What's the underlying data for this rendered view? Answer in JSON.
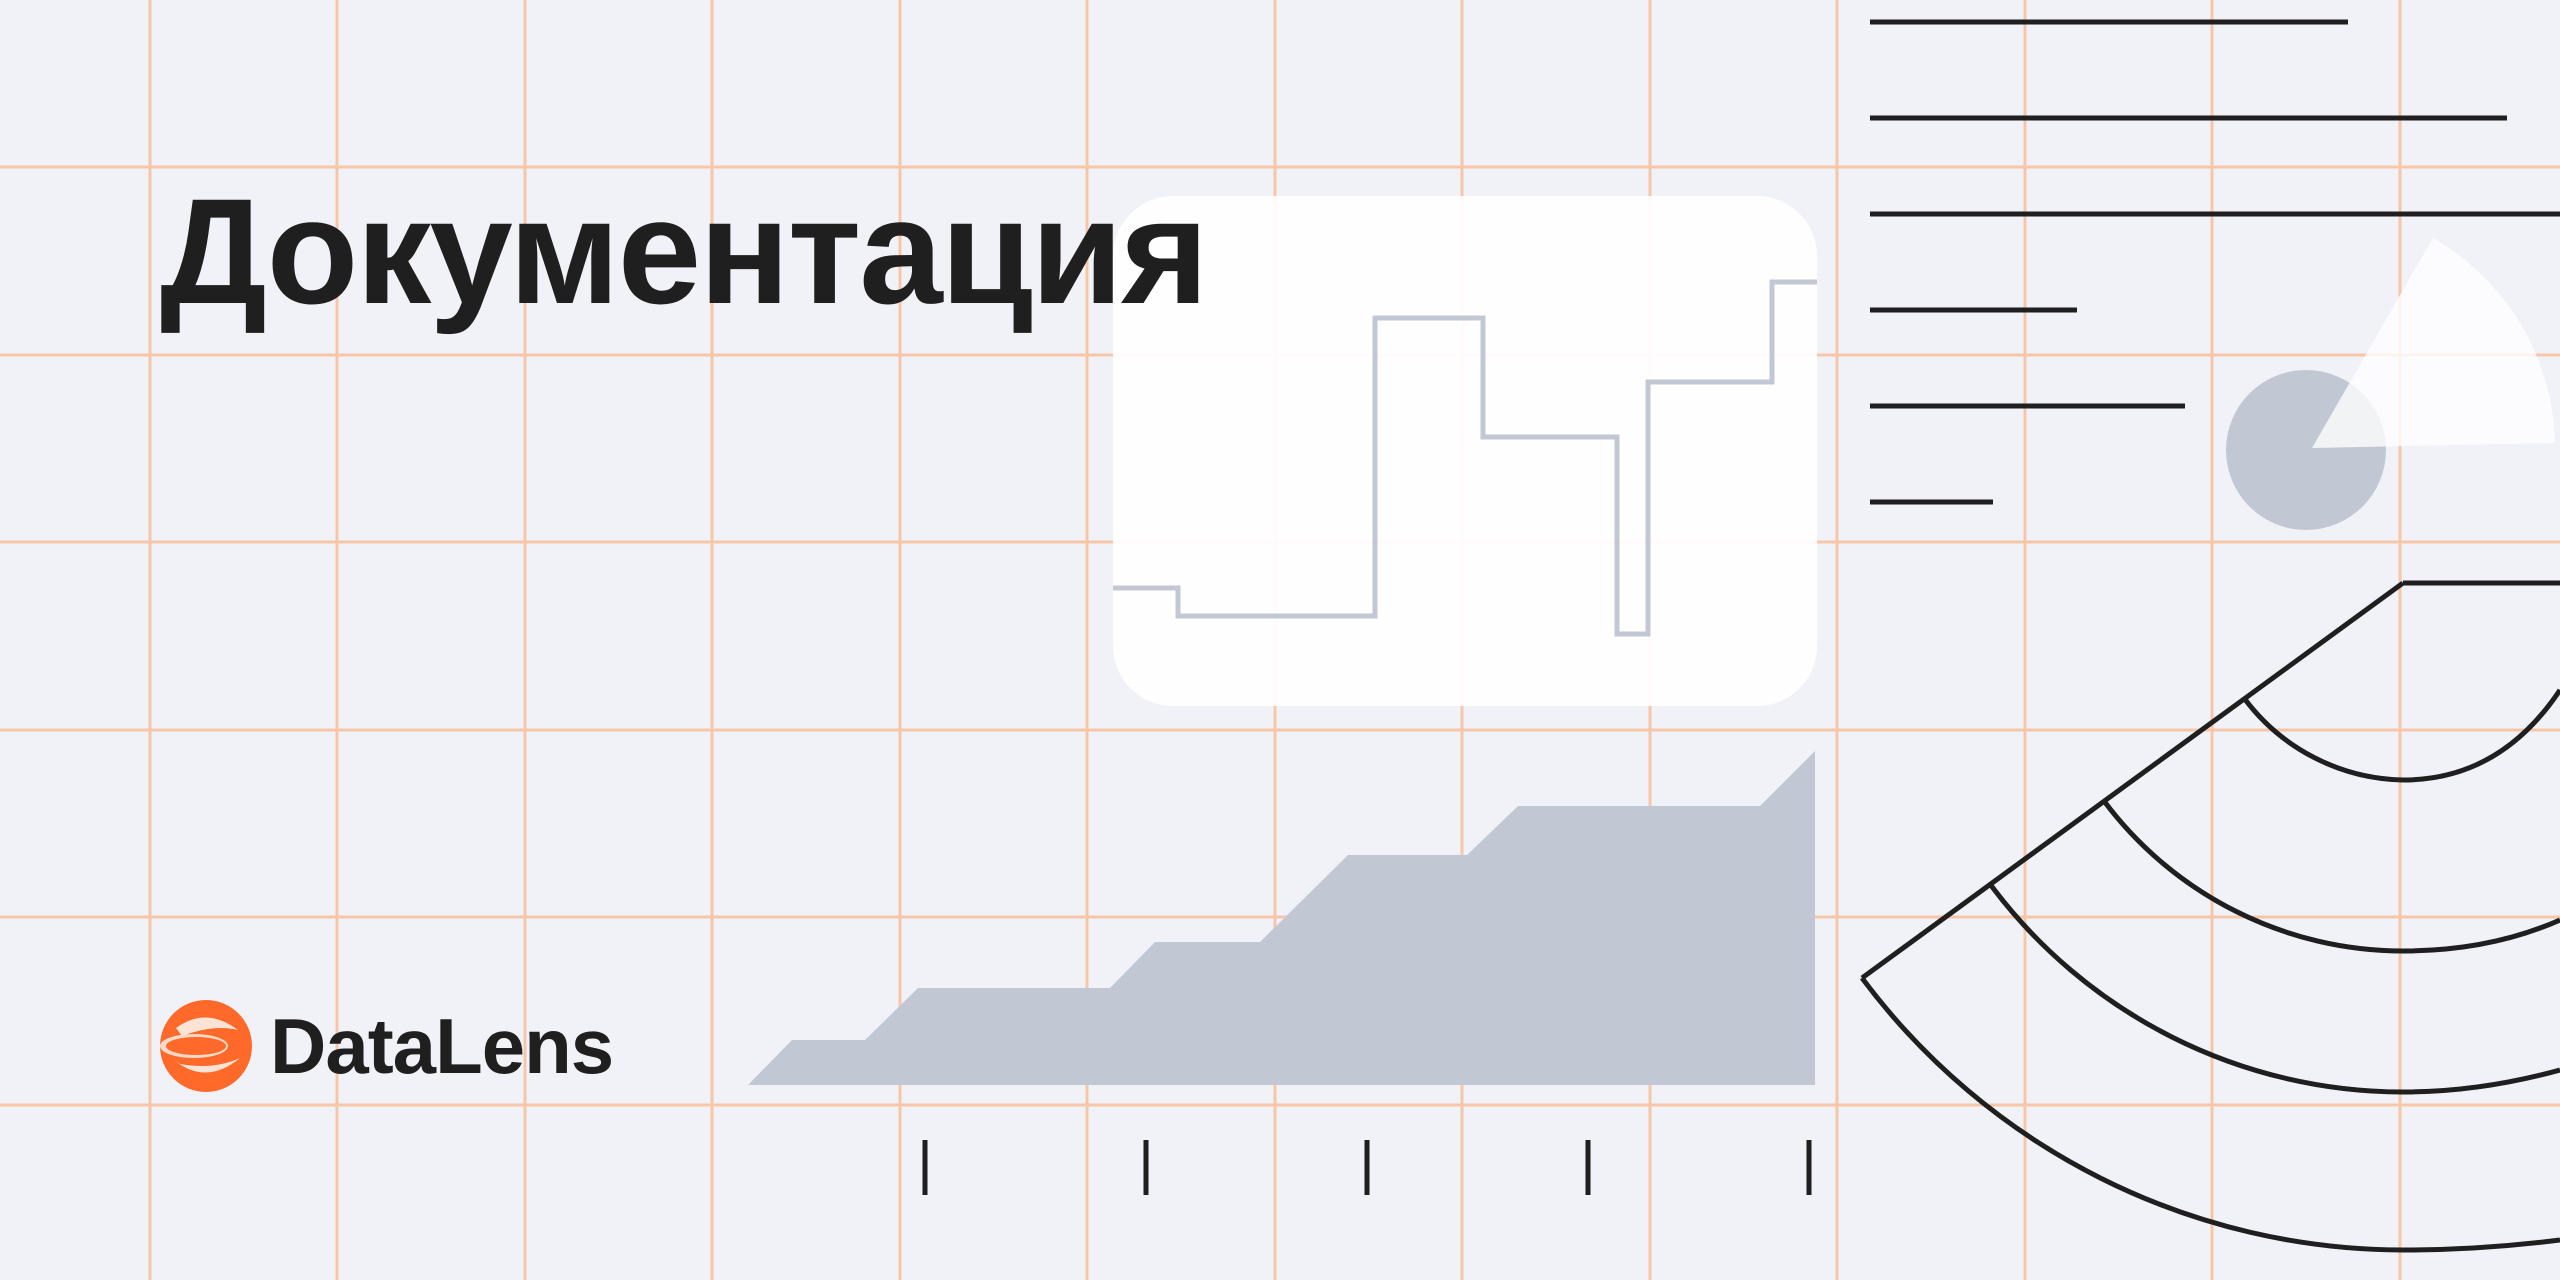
{
  "banner": {
    "title": "Документация",
    "brand_name": "DataLens",
    "logo_icon": "datalens-logo-icon"
  },
  "colors": {
    "background": "#f0f2f8",
    "grid": "#f7c6a8",
    "ink": "#1f1f1f",
    "muted_shape": "#c2c8d3",
    "card": "#ffffff",
    "brand_orange": "#ff6a2b"
  }
}
